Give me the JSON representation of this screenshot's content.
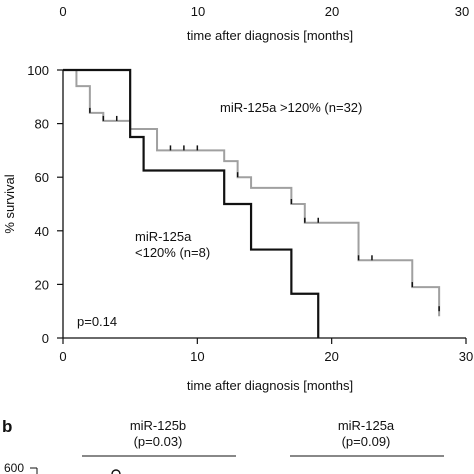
{
  "chart_data": [
    {
      "type": "line",
      "subtype": "kaplan-meier survival",
      "title": "",
      "xlabel": "time after diagnosis [months]",
      "ylabel": "% survival",
      "xlim": [
        0,
        30
      ],
      "ylim": [
        0,
        100
      ],
      "xticks": [
        "0",
        "10",
        "20",
        "30"
      ],
      "yticks": [
        "0",
        "20",
        "40",
        "60",
        "80",
        "100"
      ],
      "top_axis_ticks": [
        "0",
        "10",
        "20",
        "30"
      ],
      "top_axis_label": "time after diagnosis [months]",
      "grid": false,
      "annotation": "p=0.14",
      "series": [
        {
          "name": "miR-125a >120% (n=32)",
          "color": "#a0a0a0",
          "steps": [
            {
              "x": 0,
              "y": 100
            },
            {
              "x": 1,
              "y": 94
            },
            {
              "x": 2,
              "y": 84
            },
            {
              "x": 3,
              "y": 81
            },
            {
              "x": 5,
              "y": 78
            },
            {
              "x": 7,
              "y": 70
            },
            {
              "x": 12,
              "y": 66
            },
            {
              "x": 13,
              "y": 60
            },
            {
              "x": 14,
              "y": 56
            },
            {
              "x": 17,
              "y": 50
            },
            {
              "x": 18,
              "y": 43
            },
            {
              "x": 22,
              "y": 29
            },
            {
              "x": 26,
              "y": 19
            },
            {
              "x": 28,
              "y": 10
            }
          ],
          "censored_x": [
            2,
            3,
            4,
            8,
            9,
            10,
            13,
            17,
            18,
            19,
            22,
            23,
            26,
            28
          ],
          "label_lines": [
            "miR-125a >120% (n=32)"
          ]
        },
        {
          "name": "miR-125a <120% (n=8)",
          "color": "#111111",
          "steps": [
            {
              "x": 0,
              "y": 100
            },
            {
              "x": 5,
              "y": 75
            },
            {
              "x": 6,
              "y": 62.5
            },
            {
              "x": 12,
              "y": 50
            },
            {
              "x": 14,
              "y": 33
            },
            {
              "x": 17,
              "y": 16.5
            },
            {
              "x": 19,
              "y": 0
            }
          ],
          "censored_x": [],
          "label_lines": [
            "miR-125a",
            "<120% (n=8)"
          ]
        }
      ]
    },
    {
      "type": "scatter",
      "panel_label": "b",
      "group_headers": [
        {
          "name": "miR-125b",
          "p": "(p=0.03)"
        },
        {
          "name": "miR-125a",
          "p": "(p=0.09)"
        }
      ],
      "y_tick_visible": "600"
    }
  ]
}
